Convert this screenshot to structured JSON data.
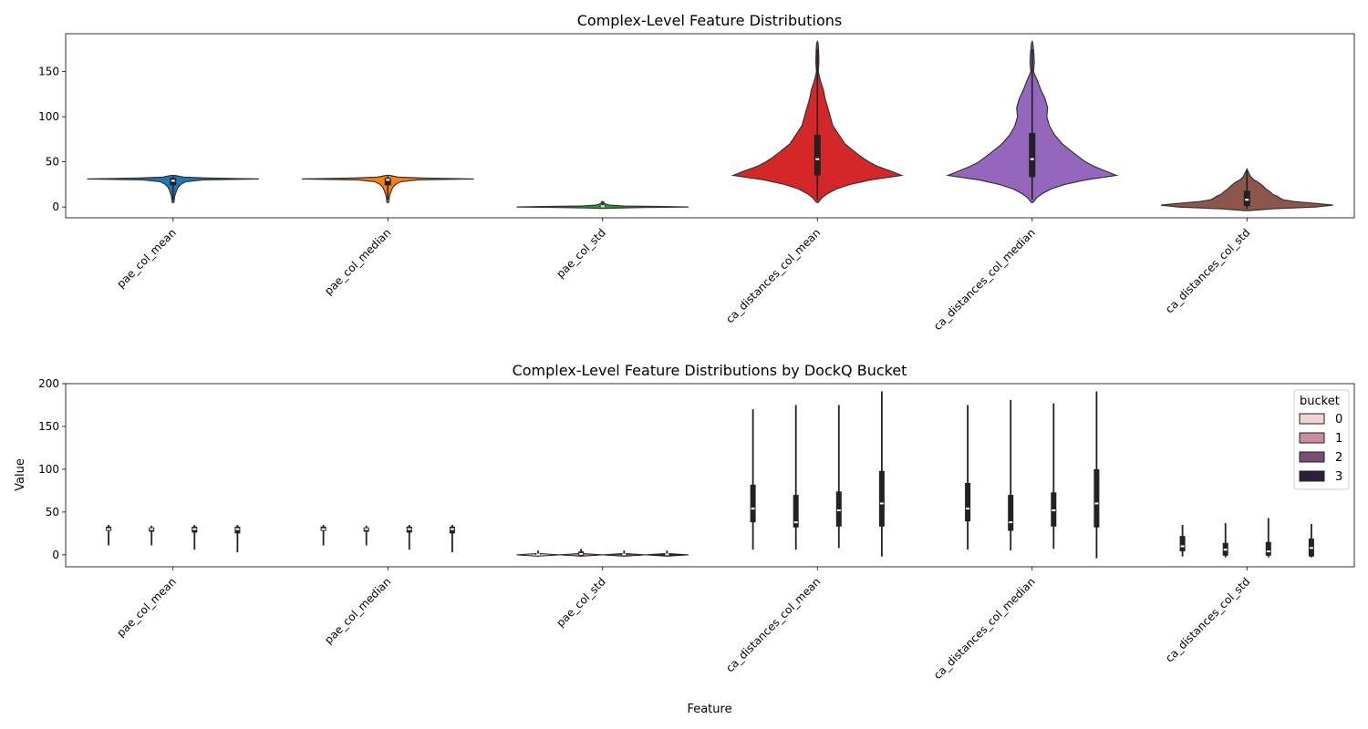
{
  "chart_data": [
    {
      "type": "violin",
      "title": "Complex-Level Feature Distributions",
      "xlabel": "",
      "ylabel": "",
      "ylim": [
        -12,
        192
      ],
      "yticks": [
        0,
        50,
        100,
        150
      ],
      "grid": false,
      "categories": [
        "pae_col_mean",
        "pae_col_median",
        "pae_col_std",
        "ca_distances_col_mean",
        "ca_distances_col_median",
        "ca_distances_col_std"
      ],
      "colors": [
        "#1f77b4",
        "#ff7f0e",
        "#2ca02c",
        "#d62728",
        "#9467bd",
        "#8c564b"
      ],
      "box": [
        {
          "q1": 24,
          "median": 29,
          "q3": 32,
          "wlo": 8,
          "whi": 34
        },
        {
          "q1": 24,
          "median": 30,
          "q3": 32,
          "wlo": 8,
          "whi": 34
        },
        {
          "q1": 0.3,
          "median": 0.8,
          "q3": 1.6,
          "wlo": 0,
          "whi": 5
        },
        {
          "q1": 35,
          "median": 53,
          "q3": 80,
          "wlo": 8,
          "whi": 175
        },
        {
          "q1": 33,
          "median": 53,
          "q3": 82,
          "wlo": 8,
          "whi": 175
        },
        {
          "q1": 1,
          "median": 8,
          "q3": 18,
          "wlo": -2,
          "whi": 40
        }
      ],
      "violin": [
        {
          "y": [
            5,
            12,
            18,
            22,
            25,
            28,
            30,
            31,
            32,
            33,
            35
          ],
          "w": [
            0.01,
            0.02,
            0.04,
            0.06,
            0.09,
            0.15,
            0.35,
            1.0,
            0.4,
            0.12,
            0.02
          ]
        },
        {
          "y": [
            5,
            12,
            18,
            22,
            25,
            28,
            30,
            31,
            32,
            33,
            35
          ],
          "w": [
            0.01,
            0.02,
            0.04,
            0.06,
            0.09,
            0.15,
            0.35,
            1.0,
            0.4,
            0.12,
            0.02
          ]
        },
        {
          "y": [
            -1.5,
            -0.5,
            0,
            0.5,
            1,
            2,
            3,
            4,
            6
          ],
          "w": [
            0.02,
            0.5,
            1.0,
            0.7,
            0.25,
            0.08,
            0.04,
            0.02,
            0.01
          ]
        },
        {
          "y": [
            5,
            10,
            15,
            20,
            25,
            30,
            35,
            40,
            45,
            50,
            55,
            60,
            70,
            80,
            90,
            100,
            110,
            120,
            130,
            140,
            150,
            160,
            170,
            180,
            184
          ],
          "w": [
            0.01,
            0.05,
            0.12,
            0.22,
            0.38,
            0.62,
            0.98,
            0.85,
            0.7,
            0.6,
            0.52,
            0.45,
            0.32,
            0.25,
            0.18,
            0.15,
            0.12,
            0.09,
            0.07,
            0.035,
            0.01,
            0.018,
            0.015,
            0.01,
            0.0
          ]
        },
        {
          "y": [
            5,
            10,
            15,
            20,
            25,
            30,
            35,
            40,
            45,
            50,
            55,
            60,
            70,
            80,
            90,
            100,
            110,
            120,
            130,
            140,
            150,
            160,
            170,
            180,
            184
          ],
          "w": [
            0.01,
            0.05,
            0.12,
            0.22,
            0.38,
            0.62,
            0.98,
            0.85,
            0.72,
            0.62,
            0.55,
            0.48,
            0.35,
            0.26,
            0.2,
            0.17,
            0.18,
            0.15,
            0.1,
            0.06,
            0.015,
            0.025,
            0.02,
            0.01,
            0.0
          ]
        },
        {
          "y": [
            -4,
            -2,
            0,
            2,
            4,
            6,
            8,
            10,
            12,
            14,
            16,
            18,
            20,
            22,
            24,
            26,
            28,
            30,
            32,
            34,
            36,
            38,
            40,
            42
          ],
          "w": [
            0.02,
            0.3,
            0.8,
            1.0,
            0.8,
            0.55,
            0.42,
            0.38,
            0.35,
            0.3,
            0.28,
            0.25,
            0.22,
            0.2,
            0.18,
            0.15,
            0.12,
            0.08,
            0.06,
            0.04,
            0.03,
            0.02,
            0.01,
            0.0
          ]
        }
      ]
    },
    {
      "type": "violin",
      "title": "Complex-Level Feature Distributions by DockQ Bucket",
      "xlabel": "Feature",
      "ylabel": "Value",
      "ylim": [
        -14,
        200
      ],
      "yticks": [
        0,
        50,
        100,
        150,
        200
      ],
      "grid": false,
      "categories": [
        "pae_col_mean",
        "pae_col_median",
        "pae_col_std",
        "ca_distances_col_mean",
        "ca_distances_col_median",
        "ca_distances_col_std"
      ],
      "legend": {
        "title": "bucket",
        "position": "upper right",
        "entries": [
          "0",
          "1",
          "2",
          "3"
        ],
        "colors": [
          "#f0d3d2",
          "#cb8d9e",
          "#7a4d79",
          "#2d1e3e"
        ]
      },
      "box": [
        [
          {
            "q1": 28,
            "median": 30,
            "q3": 33,
            "wlo": 11,
            "whi": 35
          },
          {
            "q1": 27,
            "median": 30,
            "q3": 32,
            "wlo": 11,
            "whi": 34
          },
          {
            "q1": 26,
            "median": 30,
            "q3": 33,
            "wlo": 6,
            "whi": 35
          },
          {
            "q1": 25,
            "median": 30,
            "q3": 33,
            "wlo": 3,
            "whi": 35
          }
        ],
        [
          {
            "q1": 28,
            "median": 30,
            "q3": 33,
            "wlo": 11,
            "whi": 35
          },
          {
            "q1": 27,
            "median": 30,
            "q3": 32,
            "wlo": 11,
            "whi": 34
          },
          {
            "q1": 26,
            "median": 30,
            "q3": 33,
            "wlo": 6,
            "whi": 35
          },
          {
            "q1": 25,
            "median": 30,
            "q3": 33,
            "wlo": 3,
            "whi": 35
          }
        ],
        [
          {
            "q1": 0,
            "median": 0.5,
            "q3": 1.5,
            "wlo": -1,
            "whi": 5
          },
          {
            "q1": -1,
            "median": 1,
            "q3": 4,
            "wlo": -2,
            "whi": 7
          },
          {
            "q1": 0,
            "median": 0.5,
            "q3": 1.5,
            "wlo": -1,
            "whi": 5
          },
          {
            "q1": 0,
            "median": 0.5,
            "q3": 1.5,
            "wlo": -1,
            "whi": 5
          }
        ],
        [
          {
            "q1": 38,
            "median": 54,
            "q3": 82,
            "wlo": 6,
            "whi": 170
          },
          {
            "q1": 32,
            "median": 38,
            "q3": 70,
            "wlo": 6,
            "whi": 175
          },
          {
            "q1": 33,
            "median": 52,
            "q3": 74,
            "wlo": 8,
            "whi": 175
          },
          {
            "q1": 33,
            "median": 60,
            "q3": 98,
            "wlo": -2,
            "whi": 191
          }
        ],
        [
          {
            "q1": 39,
            "median": 54,
            "q3": 84,
            "wlo": 6,
            "whi": 175
          },
          {
            "q1": 28,
            "median": 38,
            "q3": 70,
            "wlo": 5,
            "whi": 181
          },
          {
            "q1": 33,
            "median": 52,
            "q3": 73,
            "wlo": 7,
            "whi": 177
          },
          {
            "q1": 32,
            "median": 60,
            "q3": 100,
            "wlo": -4,
            "whi": 191
          }
        ],
        [
          {
            "q1": 4,
            "median": 10,
            "q3": 22,
            "wlo": -2,
            "whi": 35
          },
          {
            "q1": -1,
            "median": 6,
            "q3": 14,
            "wlo": -3,
            "whi": 37
          },
          {
            "q1": -1,
            "median": 4,
            "q3": 15,
            "wlo": -3,
            "whi": 43
          },
          {
            "q1": -2,
            "median": 8,
            "q3": 19,
            "wlo": -3,
            "whi": 36
          }
        ]
      ]
    }
  ]
}
